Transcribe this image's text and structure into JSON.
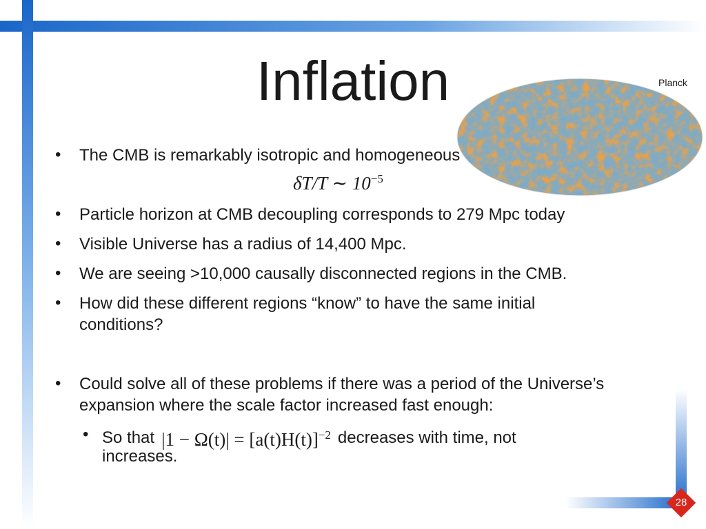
{
  "slide": {
    "title": "Inflation",
    "image_label": "Planck",
    "bullets": [
      {
        "lines": [
          "The CMB is remarkably isotropic and homogeneous"
        ]
      },
      {
        "lines": [
          "Particle horizon at CMB decoupling corresponds to 279 Mpc today"
        ]
      },
      {
        "lines": [
          "Visible Universe has a radius of 14,400 Mpc."
        ]
      },
      {
        "lines": [
          "We are seeing >10,000 causally disconnected regions in the CMB."
        ]
      },
      {
        "lines": [
          "How did these different regions “know” to have the same initial",
          "conditions?"
        ]
      },
      {
        "lines": [
          "Could solve all of these problems if there was a period of the Universe’s",
          "expansion where the scale factor increased fast enough:"
        ]
      }
    ],
    "equation": {
      "base": "δT/T ∼ 10",
      "exponent": "−5"
    },
    "sub_bullet": {
      "before": "So that",
      "equation": {
        "base": "|1 − Ω(t)| = [a(t)H(t)]",
        "exponent": "−2"
      },
      "after": "decreases with time, not",
      "continuation": "increases."
    },
    "page_number": "28"
  }
}
